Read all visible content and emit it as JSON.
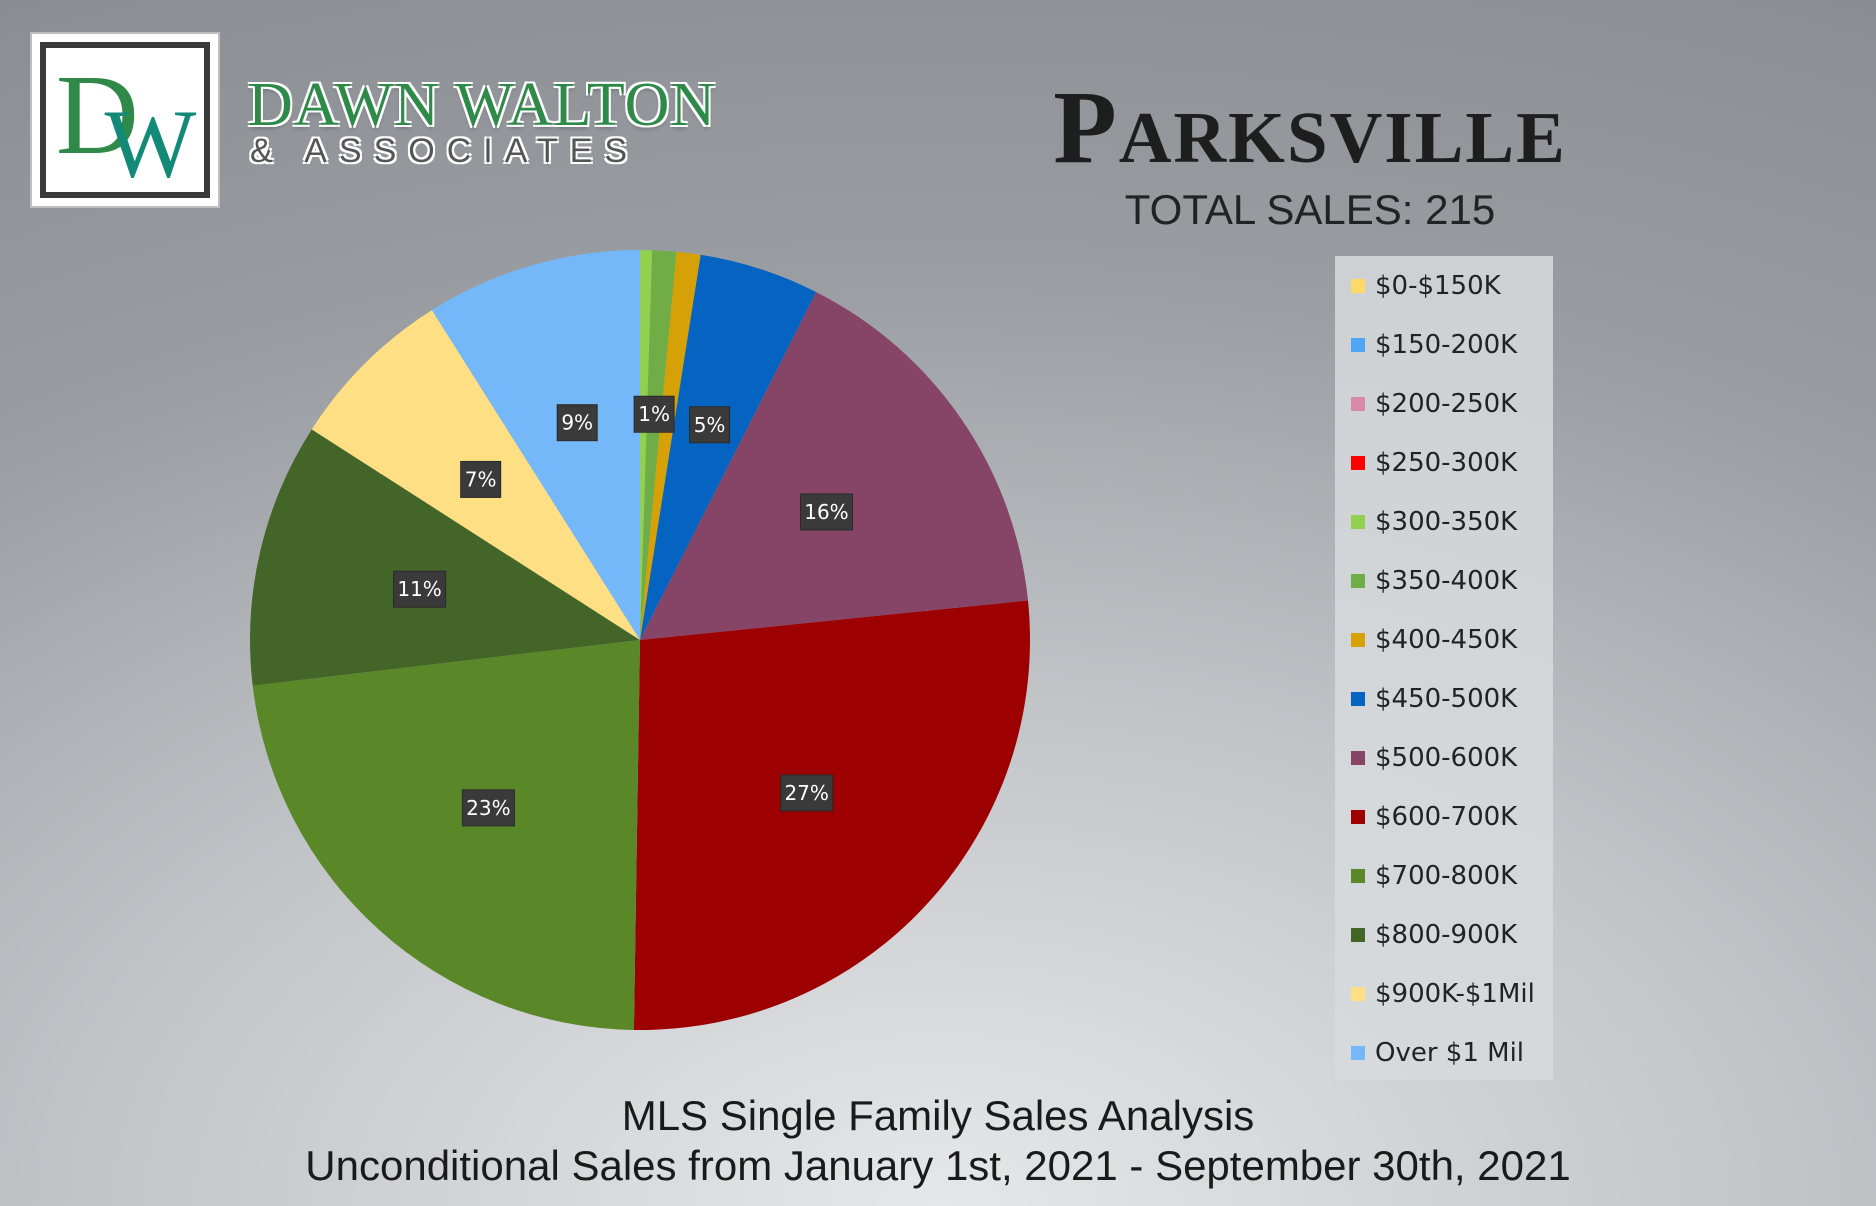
{
  "brand": {
    "monogram": "DW",
    "name": "DAWN WALTON",
    "sub": "& ASSOCIATES",
    "colors": {
      "green": "#2f8a49",
      "teal": "#138a78"
    }
  },
  "header": {
    "city": "Parksville",
    "total_sales": "TOTAL SALES: 215"
  },
  "footer": {
    "line1": "MLS Single Family Sales Analysis",
    "line2": "Unconditional Sales from January 1st, 2021 - September 30th, 2021"
  },
  "chart_data": {
    "type": "pie",
    "title": "",
    "legend_position": "right",
    "slices": [
      {
        "label": "$0-$150K",
        "value": 0,
        "color": "#ffd965",
        "data_label": ""
      },
      {
        "label": "$150-200K",
        "value": 0,
        "color": "#4ea6f5",
        "data_label": ""
      },
      {
        "label": "$200-250K",
        "value": 0,
        "color": "#d88aa8",
        "data_label": ""
      },
      {
        "label": "$250-300K",
        "value": 0,
        "color": "#ff0000",
        "data_label": ""
      },
      {
        "label": "$300-350K",
        "value": 0.5,
        "color": "#92d050",
        "data_label": ""
      },
      {
        "label": "$350-400K",
        "value": 1,
        "color": "#70ad47",
        "data_label": "1%"
      },
      {
        "label": "$400-450K",
        "value": 1,
        "color": "#d6a106",
        "data_label": ""
      },
      {
        "label": "$450-500K",
        "value": 5,
        "color": "#0563c1",
        "data_label": "5%"
      },
      {
        "label": "$500-600K",
        "value": 16,
        "color": "#864566",
        "data_label": "16%"
      },
      {
        "label": "$600-700K",
        "value": 27,
        "color": "#9c0000",
        "data_label": "27%"
      },
      {
        "label": "$700-800K",
        "value": 23,
        "color": "#5a8728",
        "data_label": "23%"
      },
      {
        "label": "$800-900K",
        "value": 11,
        "color": "#436628",
        "data_label": "11%"
      },
      {
        "label": "$900K-$1Mil",
        "value": 7,
        "color": "#ffdf83",
        "data_label": "7%"
      },
      {
        "label": "Over $1 Mil",
        "value": 9,
        "color": "#74b8f9",
        "data_label": "9%"
      }
    ]
  }
}
